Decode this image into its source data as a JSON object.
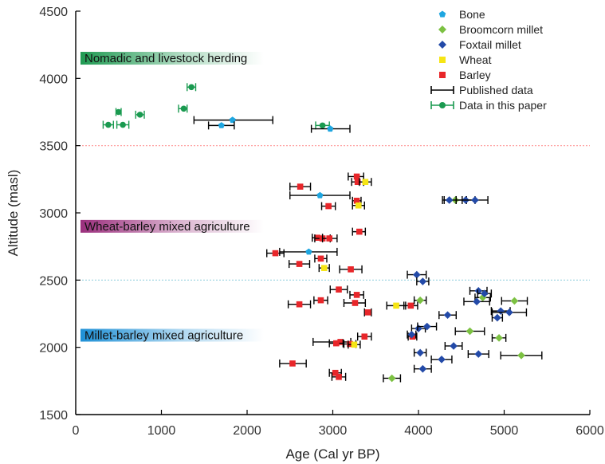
{
  "chart_data": {
    "type": "scatter",
    "xlabel": "Age (Cal yr BP)",
    "ylabel": "Altitude (masl)",
    "xlim": [
      0,
      6000
    ],
    "ylim": [
      1500,
      4500
    ],
    "x_ticks": [
      "0",
      "1000",
      "2000",
      "3000",
      "4000",
      "5000",
      "6000"
    ],
    "y_ticks": [
      "1500",
      "2000",
      "2500",
      "3000",
      "3500",
      "4000",
      "4500"
    ],
    "grid": false,
    "legend_position": "top-right",
    "reference_lines": [
      {
        "y": 3500,
        "color": "#ff9999"
      },
      {
        "y": 2500,
        "color": "#9ad3e0"
      }
    ],
    "bands": [
      {
        "label": "Nomadic and livestock herding",
        "y": 4150,
        "color": "#1f9a52"
      },
      {
        "label": "Wheat-barley mixed agriculture",
        "y": 2900,
        "color": "#9b2f7d"
      },
      {
        "label": "Millet-barley mixed agriculture",
        "y": 2090,
        "color": "#1e90d6"
      }
    ],
    "legend": [
      {
        "label": "Bone",
        "marker": "pentagon",
        "color": "#1ea6e0"
      },
      {
        "label": "Broomcorn millet",
        "marker": "diamond",
        "color": "#7cc142"
      },
      {
        "label": "Foxtail millet",
        "marker": "diamond",
        "color": "#234aa8"
      },
      {
        "label": "Wheat",
        "marker": "square",
        "color": "#f6e514"
      },
      {
        "label": "Barley",
        "marker": "square",
        "color": "#e8262a"
      },
      {
        "label": "Published data",
        "marker": "errorbar",
        "color": "#000000"
      },
      {
        "label": "Data in this paper",
        "marker": "errorbar-dot",
        "color": "#1a9a50"
      }
    ],
    "series": [
      {
        "name": "Data in this paper",
        "color": "#1a9a50",
        "marker": "circle",
        "points": [
          {
            "x": 1350,
            "y": 3935,
            "xmin": 1300,
            "xmax": 1400
          },
          {
            "x": 1260,
            "y": 3775,
            "xmin": 1200,
            "xmax": 1300
          },
          {
            "x": 500,
            "y": 3750,
            "xmin": 470,
            "xmax": 530
          },
          {
            "x": 750,
            "y": 3730,
            "xmin": 700,
            "xmax": 800
          },
          {
            "x": 380,
            "y": 3655,
            "xmin": 320,
            "xmax": 440
          },
          {
            "x": 550,
            "y": 3655,
            "xmin": 480,
            "xmax": 620
          },
          {
            "x": 2880,
            "y": 3650,
            "xmin": 2800,
            "xmax": 2960
          }
        ]
      },
      {
        "name": "Bone",
        "color": "#1ea6e0",
        "marker": "pentagon",
        "points": [
          {
            "x": 1830,
            "y": 3690,
            "xmin": 1380,
            "xmax": 2300
          },
          {
            "x": 1700,
            "y": 3650,
            "xmin": 1550,
            "xmax": 1850
          },
          {
            "x": 2970,
            "y": 3625,
            "xmin": 2750,
            "xmax": 3200
          },
          {
            "x": 2850,
            "y": 3130,
            "xmin": 2500,
            "xmax": 3200
          },
          {
            "x": 2720,
            "y": 2710,
            "xmin": 2380,
            "xmax": 3050
          }
        ]
      },
      {
        "name": "Barley",
        "color": "#e8262a",
        "marker": "square",
        "points": [
          {
            "x": 3280,
            "y": 3270,
            "xmin": 3180,
            "xmax": 3360
          },
          {
            "x": 3290,
            "y": 3230,
            "xmin": 3220,
            "xmax": 3360
          },
          {
            "x": 2620,
            "y": 3195,
            "xmin": 2500,
            "xmax": 2740
          },
          {
            "x": 3280,
            "y": 3090,
            "xmin": 3230,
            "xmax": 3330
          },
          {
            "x": 2950,
            "y": 3050,
            "xmin": 2870,
            "xmax": 3030
          },
          {
            "x": 3310,
            "y": 2860,
            "xmin": 3230,
            "xmax": 3380
          },
          {
            "x": 2820,
            "y": 2815,
            "xmin": 2760,
            "xmax": 2880
          },
          {
            "x": 2880,
            "y": 2810,
            "xmin": 2790,
            "xmax": 2970
          },
          {
            "x": 2960,
            "y": 2810,
            "xmin": 2880,
            "xmax": 3050
          },
          {
            "x": 2330,
            "y": 2700,
            "xmin": 2230,
            "xmax": 2430
          },
          {
            "x": 2860,
            "y": 2660,
            "xmin": 2790,
            "xmax": 2930
          },
          {
            "x": 2610,
            "y": 2620,
            "xmin": 2490,
            "xmax": 2730
          },
          {
            "x": 3210,
            "y": 2580,
            "xmin": 3080,
            "xmax": 3340
          },
          {
            "x": 3070,
            "y": 2430,
            "xmin": 2970,
            "xmax": 3170
          },
          {
            "x": 3280,
            "y": 2390,
            "xmin": 3200,
            "xmax": 3360
          },
          {
            "x": 2860,
            "y": 2350,
            "xmin": 2780,
            "xmax": 2940
          },
          {
            "x": 3260,
            "y": 2330,
            "xmin": 3130,
            "xmax": 3380
          },
          {
            "x": 2610,
            "y": 2320,
            "xmin": 2480,
            "xmax": 2740
          },
          {
            "x": 3910,
            "y": 2310,
            "xmin": 3830,
            "xmax": 3990
          },
          {
            "x": 3410,
            "y": 2260,
            "xmin": 3370,
            "xmax": 3450
          },
          {
            "x": 3370,
            "y": 2080,
            "xmin": 3290,
            "xmax": 3450
          },
          {
            "x": 3090,
            "y": 2040,
            "xmin": 2770,
            "xmax": 3210
          },
          {
            "x": 3040,
            "y": 2030,
            "xmin": 2960,
            "xmax": 3120
          },
          {
            "x": 3200,
            "y": 2025,
            "xmin": 3130,
            "xmax": 3270
          },
          {
            "x": 3930,
            "y": 2080,
            "xmin": 3880,
            "xmax": 3980
          },
          {
            "x": 2530,
            "y": 1880,
            "xmin": 2380,
            "xmax": 2690
          },
          {
            "x": 3030,
            "y": 1810,
            "xmin": 2960,
            "xmax": 3100
          },
          {
            "x": 3070,
            "y": 1780,
            "xmin": 2990,
            "xmax": 3150
          }
        ]
      },
      {
        "name": "Wheat",
        "color": "#f6e514",
        "marker": "square",
        "points": [
          {
            "x": 3380,
            "y": 3230,
            "xmin": 3310,
            "xmax": 3450
          },
          {
            "x": 3300,
            "y": 3055,
            "xmin": 3230,
            "xmax": 3370
          },
          {
            "x": 2900,
            "y": 2590,
            "xmin": 2840,
            "xmax": 2960
          },
          {
            "x": 3740,
            "y": 2310,
            "xmin": 3630,
            "xmax": 3850
          },
          {
            "x": 3250,
            "y": 2020,
            "xmin": 3180,
            "xmax": 3320
          }
        ]
      },
      {
        "name": "Broomcorn millet",
        "color": "#7cc142",
        "marker": "diamond",
        "points": [
          {
            "x": 4430,
            "y": 3095,
            "xmin": 4300,
            "xmax": 4560
          },
          {
            "x": 4020,
            "y": 2350,
            "xmin": 3950,
            "xmax": 4090
          },
          {
            "x": 4750,
            "y": 2370,
            "xmin": 4660,
            "xmax": 4840
          },
          {
            "x": 5120,
            "y": 2345,
            "xmin": 4970,
            "xmax": 5270
          },
          {
            "x": 4600,
            "y": 2120,
            "xmin": 4430,
            "xmax": 4770
          },
          {
            "x": 4940,
            "y": 2070,
            "xmin": 4860,
            "xmax": 5020
          },
          {
            "x": 5200,
            "y": 1940,
            "xmin": 4960,
            "xmax": 5440
          },
          {
            "x": 3690,
            "y": 1770,
            "xmin": 3590,
            "xmax": 3790
          }
        ]
      },
      {
        "name": "Foxtail millet",
        "color": "#234aa8",
        "marker": "diamond",
        "points": [
          {
            "x": 4360,
            "y": 3095,
            "xmin": 4280,
            "xmax": 4440
          },
          {
            "x": 4550,
            "y": 3095,
            "xmin": 4440,
            "xmax": 4660
          },
          {
            "x": 4660,
            "y": 3095,
            "xmin": 4510,
            "xmax": 4810
          },
          {
            "x": 3980,
            "y": 2540,
            "xmin": 3870,
            "xmax": 4090
          },
          {
            "x": 4050,
            "y": 2490,
            "xmin": 3980,
            "xmax": 4120
          },
          {
            "x": 4700,
            "y": 2420,
            "xmin": 4600,
            "xmax": 4800
          },
          {
            "x": 4770,
            "y": 2400,
            "xmin": 4690,
            "xmax": 4850
          },
          {
            "x": 4680,
            "y": 2340,
            "xmin": 4530,
            "xmax": 4830
          },
          {
            "x": 4340,
            "y": 2240,
            "xmin": 4240,
            "xmax": 4440
          },
          {
            "x": 4960,
            "y": 2270,
            "xmin": 4850,
            "xmax": 5070
          },
          {
            "x": 5060,
            "y": 2260,
            "xmin": 4860,
            "xmax": 5260
          },
          {
            "x": 4920,
            "y": 2220,
            "xmin": 4860,
            "xmax": 4980
          },
          {
            "x": 4000,
            "y": 2140,
            "xmin": 3920,
            "xmax": 4080
          },
          {
            "x": 4100,
            "y": 2155,
            "xmin": 3990,
            "xmax": 4210
          },
          {
            "x": 3920,
            "y": 2095,
            "xmin": 3870,
            "xmax": 3970
          },
          {
            "x": 4020,
            "y": 1960,
            "xmin": 3950,
            "xmax": 4090
          },
          {
            "x": 4410,
            "y": 2010,
            "xmin": 4310,
            "xmax": 4510
          },
          {
            "x": 4700,
            "y": 1950,
            "xmin": 4580,
            "xmax": 4820
          },
          {
            "x": 4270,
            "y": 1910,
            "xmin": 4150,
            "xmax": 4390
          },
          {
            "x": 4050,
            "y": 1840,
            "xmin": 3950,
            "xmax": 4150
          }
        ]
      }
    ]
  }
}
